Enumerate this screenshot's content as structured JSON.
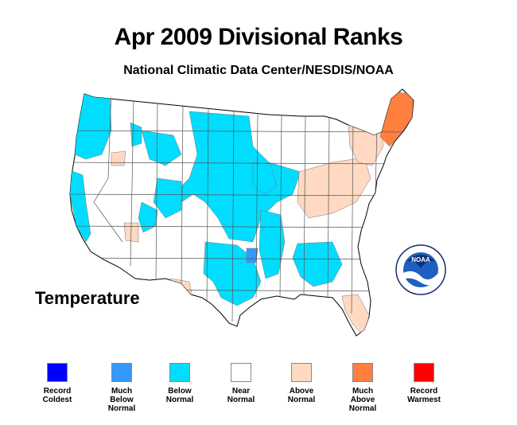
{
  "title": "Apr 2009 Divisional Ranks",
  "subtitle": "National Climatic Data Center/NESDIS/NOAA",
  "variable": "Temperature",
  "logo_text": "NOAA",
  "legend": [
    {
      "label": "Record\nColdest",
      "color": "#0000ff"
    },
    {
      "label": "Much\nBelow\nNormal",
      "color": "#3399ff"
    },
    {
      "label": "Below\nNormal",
      "color": "#00ddff"
    },
    {
      "label": "Near\nNormal",
      "color": "#ffffff"
    },
    {
      "label": "Above\nNormal",
      "color": "#ffd9c2"
    },
    {
      "label": "Much\nAbove\nNormal",
      "color": "#ff7f3f"
    },
    {
      "label": "Record\nWarmest",
      "color": "#ff0000"
    }
  ]
}
